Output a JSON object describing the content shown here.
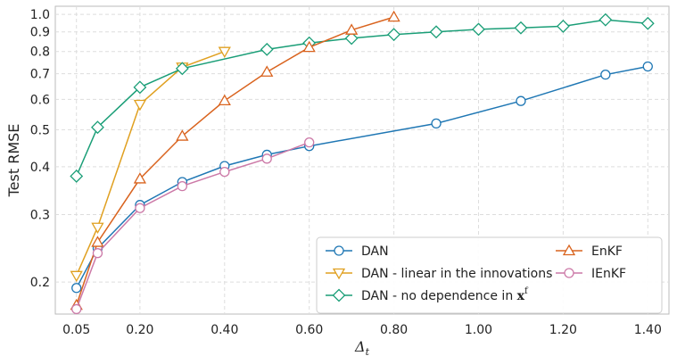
{
  "chart_data": {
    "type": "line",
    "xlabel": "Δ",
    "xlabel_sub": "t",
    "ylabel": "Test RMSE",
    "yscale": "log",
    "xlim": [
      0,
      1.45
    ],
    "ylim": [
      0.165,
      1.05
    ],
    "grid": true,
    "legend_position": "lower-right",
    "x_ticks": [
      0.05,
      0.2,
      0.4,
      0.6,
      0.8,
      1.0,
      1.2,
      1.4
    ],
    "x_tick_labels": [
      "0.05",
      "0.20",
      "0.40",
      "0.60",
      "0.80",
      "1.00",
      "1.20",
      "1.40"
    ],
    "y_ticks": [
      0.2,
      0.3,
      0.4,
      0.5,
      0.6,
      0.7,
      0.8,
      0.9,
      1.0
    ],
    "y_tick_labels": [
      "0.2",
      "0.3",
      "0.4",
      "0.5",
      "0.6",
      "0.7",
      "0.8",
      "0.9",
      "1.0"
    ],
    "series": [
      {
        "name": "DAN",
        "color": "#1f77b4",
        "marker": "circle",
        "x": [
          0.05,
          0.1,
          0.2,
          0.3,
          0.4,
          0.5,
          0.6,
          0.9,
          1.1,
          1.3,
          1.4
        ],
        "y": [
          0.193,
          0.245,
          0.318,
          0.365,
          0.402,
          0.43,
          0.453,
          0.519,
          0.594,
          0.696,
          0.731
        ]
      },
      {
        "name": "DAN - linear in the innovations",
        "color": "#e0a020",
        "marker": "triangle-down",
        "x": [
          0.05,
          0.1,
          0.2,
          0.3,
          0.4
        ],
        "y": [
          0.208,
          0.278,
          0.582,
          0.728,
          0.8
        ]
      },
      {
        "name": "DAN - no dependence in ",
        "name_math": "x",
        "name_sup": "f",
        "color": "#1a9e77",
        "marker": "diamond",
        "x": [
          0.05,
          0.1,
          0.2,
          0.3,
          0.5,
          0.6,
          0.7,
          0.8,
          0.9,
          1.0,
          1.1,
          1.2,
          1.3,
          1.4
        ],
        "y": [
          0.378,
          0.507,
          0.645,
          0.722,
          0.81,
          0.842,
          0.866,
          0.886,
          0.9,
          0.914,
          0.922,
          0.931,
          0.968,
          0.947
        ]
      },
      {
        "name": "EnKF",
        "color": "#d9631e",
        "marker": "triangle-up",
        "x": [
          0.05,
          0.1,
          0.2,
          0.3,
          0.4,
          0.5,
          0.6,
          0.7,
          0.8
        ],
        "y": [
          0.174,
          0.254,
          0.372,
          0.481,
          0.595,
          0.707,
          0.82,
          0.91,
          0.984
        ]
      },
      {
        "name": "IEnKF",
        "color": "#cc79a7",
        "marker": "circle",
        "x": [
          0.05,
          0.1,
          0.2,
          0.3,
          0.4,
          0.5,
          0.6
        ],
        "y": [
          0.17,
          0.238,
          0.312,
          0.356,
          0.388,
          0.42,
          0.463
        ]
      }
    ]
  }
}
